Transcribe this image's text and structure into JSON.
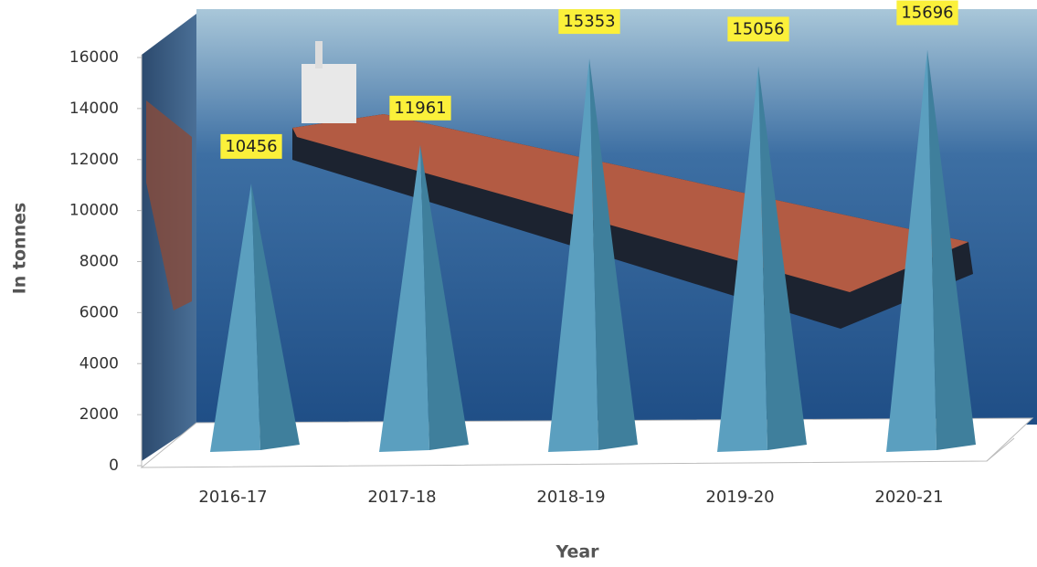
{
  "chart_data": {
    "type": "pyramid",
    "x_label": "Year",
    "y_label": "In tonnes",
    "categories": [
      "2016-17",
      "2017-18",
      "2018-19",
      "2019-20",
      "2020-21"
    ],
    "values": [
      10456,
      11961,
      15353,
      15056,
      15696
    ],
    "color": "#5b9fbf",
    "ylim": [
      0,
      16000
    ],
    "yticks": [
      0,
      2000,
      4000,
      6000,
      8000,
      10000,
      12000,
      14000,
      16000
    ]
  }
}
